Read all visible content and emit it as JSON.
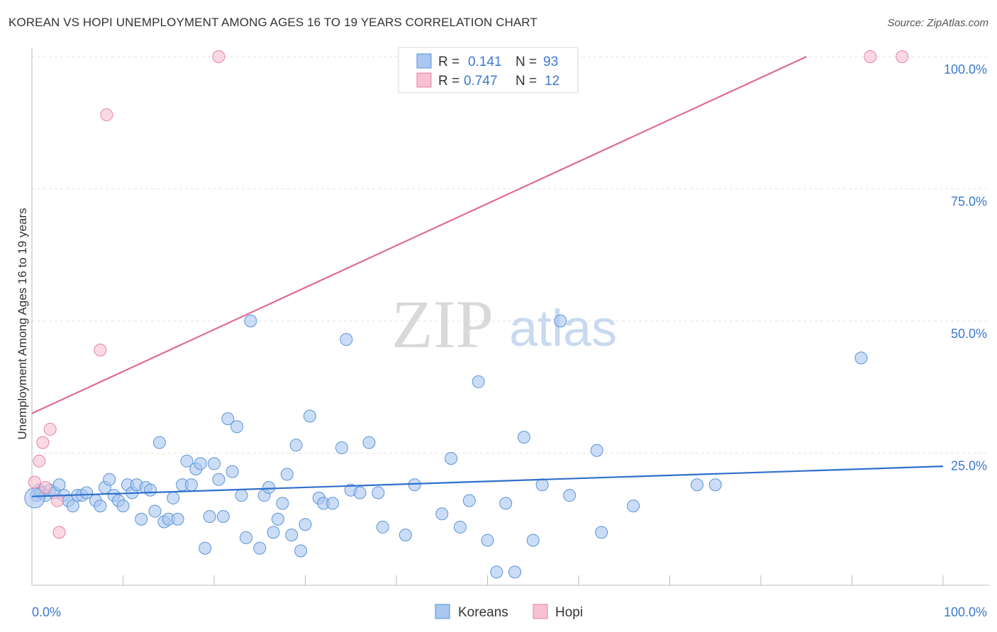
{
  "title": "KOREAN VS HOPI UNEMPLOYMENT AMONG AGES 16 TO 19 YEARS CORRELATION CHART",
  "source": "Source: ZipAtlas.com",
  "watermark": {
    "zip": "ZIP",
    "atlas": "atlas"
  },
  "legend": {
    "series": [
      {
        "name": "Koreans",
        "r_label": "R =",
        "r_value": "0.141",
        "n_label": "N =",
        "n_value": "93",
        "fill": "#a9c7f0",
        "stroke": "#5b93d8"
      },
      {
        "name": "Hopi",
        "r_label": "R =",
        "r_value": "0.747",
        "n_label": "N =",
        "n_value": "12",
        "fill": "#f8c0d2",
        "stroke": "#e77fa2"
      }
    ]
  },
  "chart_data": {
    "type": "scatter",
    "title": "KOREAN VS HOPI UNEMPLOYMENT AMONG AGES 16 TO 19 YEARS CORRELATION CHART",
    "xlabel": "",
    "ylabel": "Unemployment Among Ages 16 to 19 years",
    "xlim": [
      0,
      100
    ],
    "ylim": [
      0,
      100
    ],
    "x_tick_labels": [
      "0.0%",
      "100.0%"
    ],
    "y_tick_labels": [
      "25.0%",
      "50.0%",
      "75.0%",
      "100.0%"
    ],
    "y_ticks": [
      25,
      50,
      75,
      100
    ],
    "grid": true,
    "legend_position": "top-center",
    "series": [
      {
        "name": "Koreans",
        "color": "#5b93d8",
        "fill": "#a9c7f0",
        "trendline": {
          "x": [
            0,
            100
          ],
          "y": [
            16.8,
            22.5
          ]
        },
        "points": [
          [
            0.5,
            17
          ],
          [
            0.8,
            18
          ],
          [
            1,
            17.5
          ],
          [
            1.5,
            17
          ],
          [
            2,
            18
          ],
          [
            2.5,
            17.5
          ],
          [
            3,
            19
          ],
          [
            3.5,
            17
          ],
          [
            4,
            16
          ],
          [
            4.5,
            15
          ],
          [
            5,
            17
          ],
          [
            5.5,
            17
          ],
          [
            6,
            17.5
          ],
          [
            7,
            16
          ],
          [
            7.5,
            15
          ],
          [
            8,
            18.5
          ],
          [
            8.5,
            20
          ],
          [
            9,
            17
          ],
          [
            9.5,
            16
          ],
          [
            10,
            15
          ],
          [
            10.5,
            19
          ],
          [
            11,
            17.5
          ],
          [
            11.5,
            19
          ],
          [
            12,
            12.5
          ],
          [
            12.5,
            18.5
          ],
          [
            13,
            18
          ],
          [
            13.5,
            14
          ],
          [
            14,
            27
          ],
          [
            14.5,
            12
          ],
          [
            15,
            12.5
          ],
          [
            15.5,
            16.5
          ],
          [
            16,
            12.5
          ],
          [
            16.5,
            19
          ],
          [
            17,
            23.5
          ],
          [
            17.5,
            19
          ],
          [
            18,
            22
          ],
          [
            18.5,
            23
          ],
          [
            19,
            7
          ],
          [
            19.5,
            13
          ],
          [
            20,
            23
          ],
          [
            20.5,
            20
          ],
          [
            21,
            13
          ],
          [
            21.5,
            31.5
          ],
          [
            22,
            21.5
          ],
          [
            22.5,
            30
          ],
          [
            23,
            17
          ],
          [
            23.5,
            9
          ],
          [
            24,
            50
          ],
          [
            25,
            7
          ],
          [
            25.5,
            17
          ],
          [
            26,
            18.5
          ],
          [
            26.5,
            10
          ],
          [
            27,
            12.5
          ],
          [
            27.5,
            15.5
          ],
          [
            28,
            21
          ],
          [
            28.5,
            9.5
          ],
          [
            29,
            26.5
          ],
          [
            29.5,
            6.5
          ],
          [
            30,
            11.5
          ],
          [
            30.5,
            32
          ],
          [
            31.5,
            16.5
          ],
          [
            32,
            15.5
          ],
          [
            33,
            15.5
          ],
          [
            34,
            26
          ],
          [
            34.5,
            46.5
          ],
          [
            35,
            18
          ],
          [
            36,
            17.5
          ],
          [
            37,
            27
          ],
          [
            38,
            17.5
          ],
          [
            38.5,
            11
          ],
          [
            41,
            9.5
          ],
          [
            42,
            19
          ],
          [
            45,
            13.5
          ],
          [
            46,
            24
          ],
          [
            47,
            11
          ],
          [
            48,
            16
          ],
          [
            49,
            38.5
          ],
          [
            50,
            8.5
          ],
          [
            51,
            2.5
          ],
          [
            52,
            15.5
          ],
          [
            53,
            2.5
          ],
          [
            54,
            28
          ],
          [
            55,
            8.5
          ],
          [
            56,
            19
          ],
          [
            58,
            50
          ],
          [
            59,
            17
          ],
          [
            62,
            25.5
          ],
          [
            62.5,
            10
          ],
          [
            66,
            15
          ],
          [
            73,
            19
          ],
          [
            75,
            19
          ],
          [
            91,
            43
          ],
          [
            0.3,
            16.5
          ]
        ]
      },
      {
        "name": "Hopi",
        "color": "#e77fa2",
        "fill": "#f8c0d2",
        "trendline": {
          "x": [
            0,
            85
          ],
          "y": [
            32.5,
            100
          ]
        },
        "points": [
          [
            0.3,
            19.5
          ],
          [
            0.8,
            23.5
          ],
          [
            1.2,
            27
          ],
          [
            1.5,
            18.5
          ],
          [
            2,
            29.5
          ],
          [
            2.8,
            16
          ],
          [
            3,
            10
          ],
          [
            7.5,
            44.5
          ],
          [
            8.2,
            89
          ],
          [
            20.5,
            100
          ],
          [
            92,
            100
          ],
          [
            95.5,
            100
          ]
        ]
      }
    ]
  }
}
